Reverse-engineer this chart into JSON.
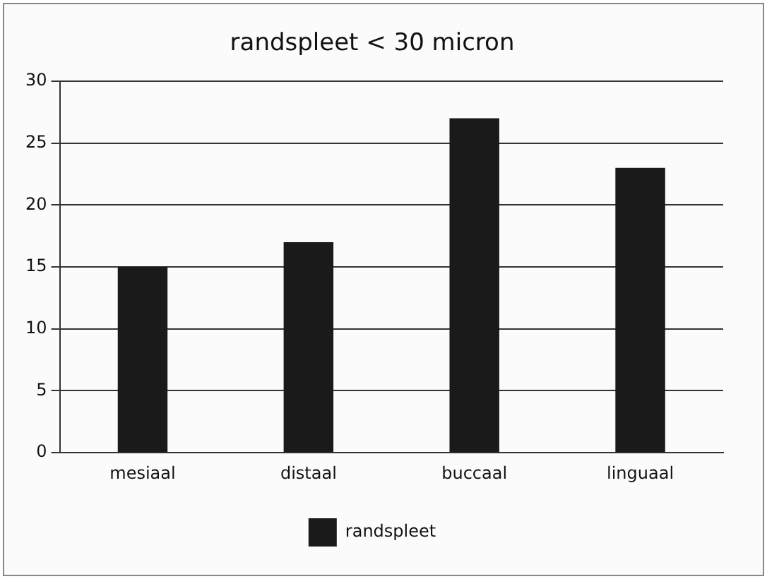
{
  "chart_data": {
    "type": "bar",
    "title": "randspleet < 30 micron",
    "categories": [
      "mesiaal",
      "distaal",
      "buccaal",
      "linguaal"
    ],
    "series": [
      {
        "name": "randspleet",
        "color": "#1a1a1a",
        "values": [
          15,
          17,
          27,
          23
        ]
      }
    ],
    "ylim": [
      0,
      30
    ],
    "yticks": [
      0,
      5,
      10,
      15,
      20,
      25,
      30
    ],
    "grid": "y",
    "legend": "bottom"
  }
}
